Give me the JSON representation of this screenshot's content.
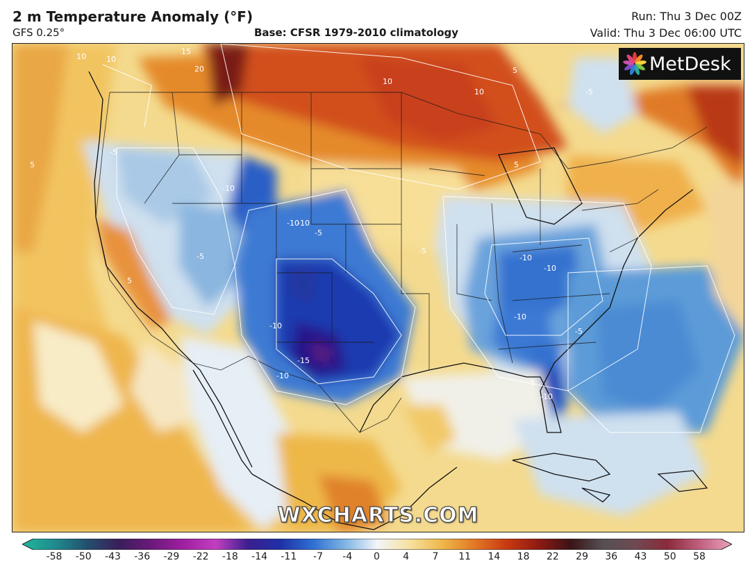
{
  "header": {
    "title": "2 m Temperature Anomaly (°F)",
    "model": "GFS 0.25°",
    "base": "Base: CFSR 1979-2010 climatology",
    "run": "Run: Thu 3 Dec 00Z",
    "valid": "Valid: Thu 3 Dec 06:00 UTC"
  },
  "logo": {
    "text": "MetDesk",
    "icon": "metdesk-pinwheel-icon"
  },
  "watermark": "WXCHARTS.COM",
  "colorbar": {
    "ticks": [
      "-58",
      "-50",
      "-43",
      "-36",
      "-29",
      "-22",
      "-18",
      "-14",
      "-11",
      "-7",
      "-4",
      "0",
      "4",
      "7",
      "11",
      "14",
      "18",
      "22",
      "29",
      "36",
      "43",
      "50",
      "58"
    ],
    "colors": [
      "#1fb89a",
      "#1f8b8f",
      "#23506e",
      "#3a1e5a",
      "#6a1a7a",
      "#a01fa0",
      "#c23fc0",
      "#3a1f8f",
      "#2030a8",
      "#2d6fd1",
      "#7fb4e3",
      "#f2f5fa",
      "#f7e1a0",
      "#eeb84a",
      "#e27a26",
      "#c93a12",
      "#8f1a12",
      "#3a1416",
      "#555055",
      "#6e4a52",
      "#8a2a3a",
      "#c06080",
      "#eaa3bf"
    ]
  },
  "contour_labels": {
    "minus15": "-15",
    "minus10": "-10",
    "minus5": "-5",
    "plus5": "5",
    "plus10": "10",
    "plus15": "15",
    "plus20": "20"
  }
}
